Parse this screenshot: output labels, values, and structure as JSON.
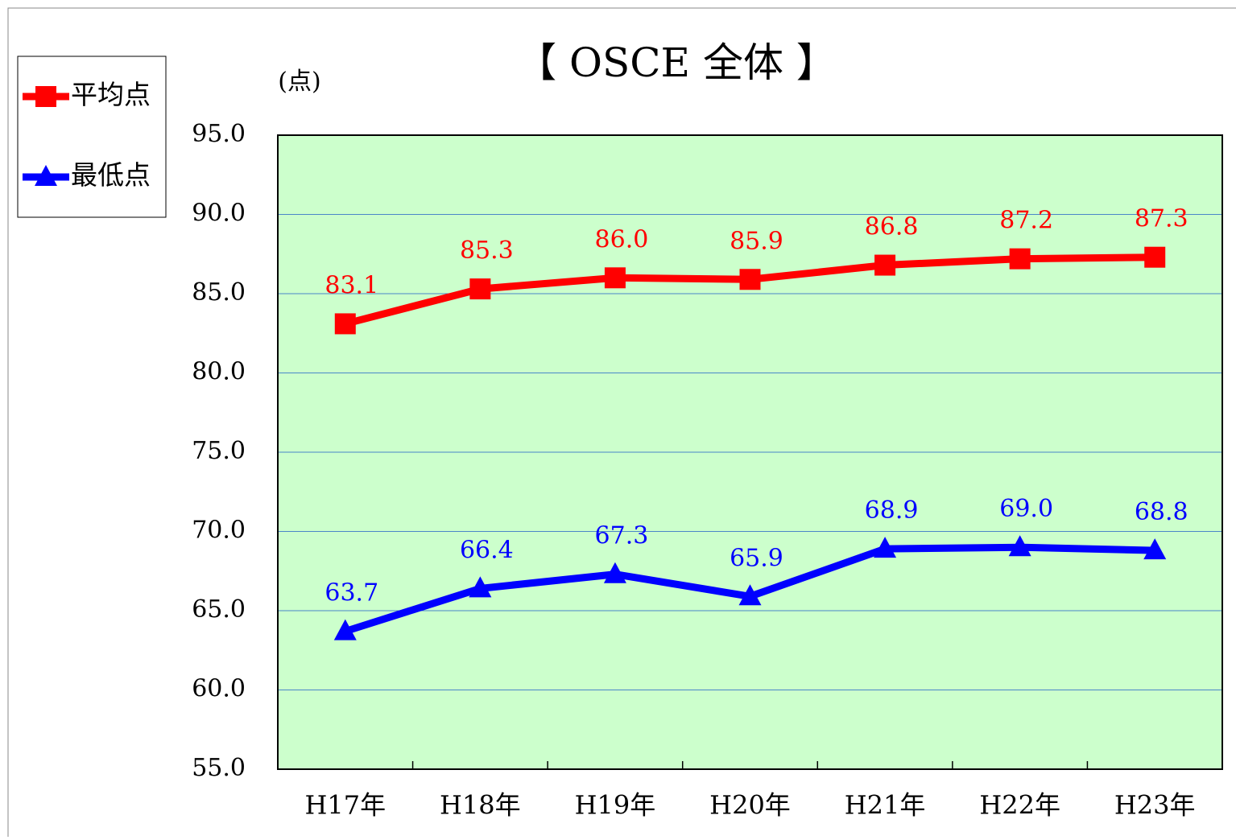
{
  "chart_data": {
    "type": "line",
    "title": "【  OSCE  全体  】",
    "y_label": "(点)",
    "categories": [
      "H17年",
      "H18年",
      "H19年",
      "H20年",
      "H21年",
      "H22年",
      "H23年"
    ],
    "series": [
      {
        "name": "平均点",
        "color": "#ff0000",
        "marker": "square",
        "values": [
          83.1,
          85.3,
          86.0,
          85.9,
          86.8,
          87.2,
          87.3
        ],
        "value_labels": [
          "83.1",
          "85.3",
          "86.0",
          "85.9",
          "86.8",
          "87.2",
          "87.3"
        ]
      },
      {
        "name": "最低点",
        "color": "#0000ff",
        "marker": "triangle",
        "values": [
          63.7,
          66.4,
          67.3,
          65.9,
          68.9,
          69.0,
          68.8
        ],
        "value_labels": [
          "63.7",
          "66.4",
          "67.3",
          "65.9",
          "68.9",
          "69.0",
          "68.8"
        ]
      }
    ],
    "ylim": [
      55,
      95
    ],
    "yticks": [
      {
        "value": 55,
        "label": "55.0"
      },
      {
        "value": 60,
        "label": "60.0"
      },
      {
        "value": 65,
        "label": "65.0"
      },
      {
        "value": 70,
        "label": "70.0"
      },
      {
        "value": 75,
        "label": "75.0"
      },
      {
        "value": 80,
        "label": "80.0"
      },
      {
        "value": 85,
        "label": "85.0"
      },
      {
        "value": 90,
        "label": "90.0"
      },
      {
        "value": 95,
        "label": "95.0"
      }
    ],
    "grid": true,
    "plot_background": "#ccffcc",
    "legend": "left"
  }
}
